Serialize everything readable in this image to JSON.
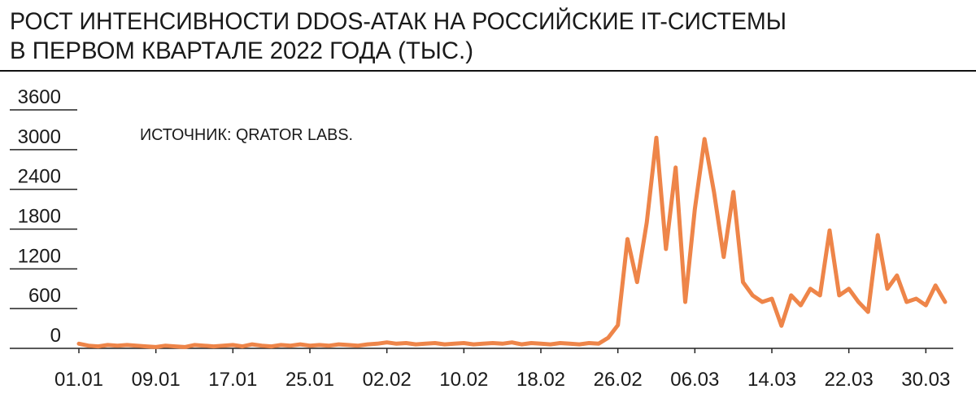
{
  "chart_data": {
    "type": "line",
    "title": [
      "РОСТ ИНТЕНСИВНОСТИ DDOS-АТАК НА РОССИЙСКИЕ IT-СИСТЕМЫ",
      "В ПЕРВОМ КВАРТАЛЕ 2022 ГОДА (ТЫС.)"
    ],
    "annotation": "ИСТОЧНИК: QRATOR LABS.",
    "categories": [
      "01.01",
      null,
      null,
      null,
      null,
      null,
      null,
      null,
      "09.01",
      null,
      null,
      null,
      null,
      null,
      null,
      null,
      "17.01",
      null,
      null,
      null,
      null,
      null,
      null,
      null,
      "25.01",
      null,
      null,
      null,
      null,
      null,
      null,
      null,
      "02.02",
      null,
      null,
      null,
      null,
      null,
      null,
      null,
      "10.02",
      null,
      null,
      null,
      null,
      null,
      null,
      null,
      "18.02",
      null,
      null,
      null,
      null,
      null,
      null,
      null,
      "26.02",
      null,
      null,
      null,
      null,
      null,
      null,
      null,
      "06.03",
      null,
      null,
      null,
      null,
      null,
      null,
      null,
      "14.03",
      null,
      null,
      null,
      null,
      null,
      null,
      null,
      "22.03",
      null,
      null,
      null,
      null,
      null,
      null,
      null,
      "30.03",
      null,
      null
    ],
    "values": [
      70,
      40,
      30,
      50,
      40,
      50,
      40,
      30,
      20,
      40,
      30,
      20,
      50,
      40,
      30,
      40,
      50,
      30,
      60,
      40,
      30,
      50,
      40,
      60,
      40,
      50,
      40,
      60,
      50,
      40,
      60,
      70,
      90,
      70,
      80,
      60,
      70,
      80,
      60,
      70,
      80,
      60,
      70,
      80,
      70,
      90,
      60,
      80,
      70,
      60,
      80,
      70,
      60,
      80,
      70,
      160,
      350,
      1650,
      1000,
      1900,
      3180,
      1500,
      2730,
      700,
      2100,
      3160,
      2350,
      1380,
      2360,
      1000,
      800,
      700,
      750,
      340,
      800,
      650,
      900,
      800,
      1780,
      800,
      900,
      700,
      550,
      1710,
      900,
      1100,
      700,
      750,
      650,
      950,
      700
    ],
    "color": "#ee8549",
    "ylim": [
      0,
      3600
    ],
    "yticks": [
      0,
      600,
      1200,
      1800,
      2400,
      3000,
      3600
    ]
  }
}
